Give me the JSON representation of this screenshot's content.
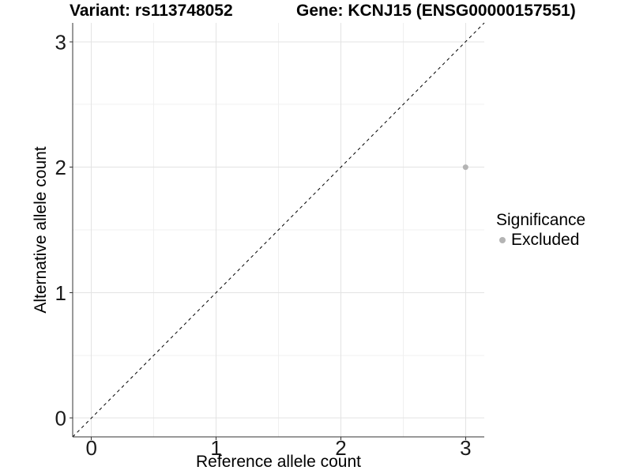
{
  "chart_data": {
    "type": "scatter",
    "title_left": "Variant: rs113748052",
    "title_right": "Gene: KCNJ15 (ENSG00000157551)",
    "xlabel": "Reference allele count",
    "ylabel": "Alternative allele count",
    "xlim": [
      -0.15,
      3.15
    ],
    "ylim": [
      -0.15,
      3.15
    ],
    "x_ticks": [
      0,
      1,
      2,
      3
    ],
    "y_ticks": [
      0,
      1,
      2,
      3
    ],
    "x_minor_ticks": [
      0.5,
      1.5,
      2.5
    ],
    "y_minor_ticks": [
      0.5,
      1.5,
      2.5
    ],
    "grid": "major+minor",
    "points": [
      {
        "x": 3,
        "y": 2,
        "series": "Excluded"
      }
    ],
    "point_radius": 3.5,
    "reference_line": {
      "slope": 1,
      "intercept": 0,
      "style": "dashed",
      "color": "#000000"
    },
    "legend": {
      "title": "Significance",
      "position": "right",
      "entries": [
        {
          "label": "Excluded",
          "color": "#b4b4b4",
          "marker": "circle"
        }
      ]
    },
    "colors": {
      "background": "#ffffff",
      "grid_major": "#e3e3e3",
      "grid_minor": "#f0f0f0",
      "axis_line": "#333333",
      "tick_mark": "#333333",
      "tick_label": "#1a1a1a",
      "point": "#b4b4b4"
    }
  }
}
